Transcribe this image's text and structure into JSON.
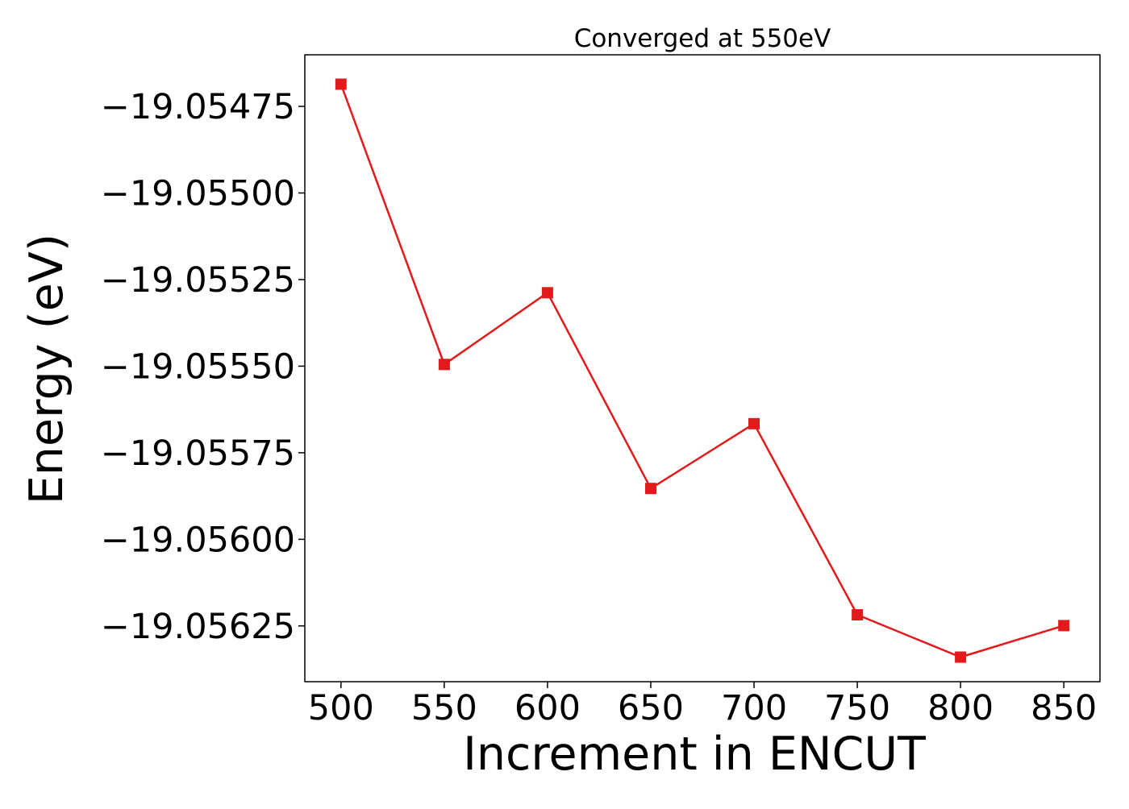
{
  "chart_data": {
    "type": "line",
    "title": "Converged at 550eV",
    "xlabel": "Increment in ENCUT",
    "ylabel": "Energy (eV)",
    "x": [
      500,
      550,
      600,
      650,
      700,
      750,
      800,
      850
    ],
    "series": [
      {
        "values": [
          -19.054686,
          -19.055495,
          -19.055288,
          -19.055853,
          -19.055666,
          -19.056218,
          -19.05634,
          -19.056249
        ],
        "color": "#e31a1c",
        "marker": "square"
      }
    ],
    "xticks": [
      500,
      550,
      600,
      650,
      700,
      750,
      800,
      850
    ],
    "xtick_labels": [
      "500",
      "550",
      "600",
      "650",
      "700",
      "750",
      "800",
      "850"
    ],
    "yticks": [
      -19.05475,
      -19.055,
      -19.05525,
      -19.0555,
      -19.05575,
      -19.056,
      -19.05625
    ],
    "ytick_labels": [
      "−19.05475",
      "−19.05500",
      "−19.05525",
      "−19.05550",
      "−19.05575",
      "−19.05600",
      "−19.05625"
    ],
    "xlim": [
      482.5,
      867.5
    ],
    "ylim": [
      -19.056411,
      -19.054601
    ],
    "grid": false,
    "legend": false
  }
}
